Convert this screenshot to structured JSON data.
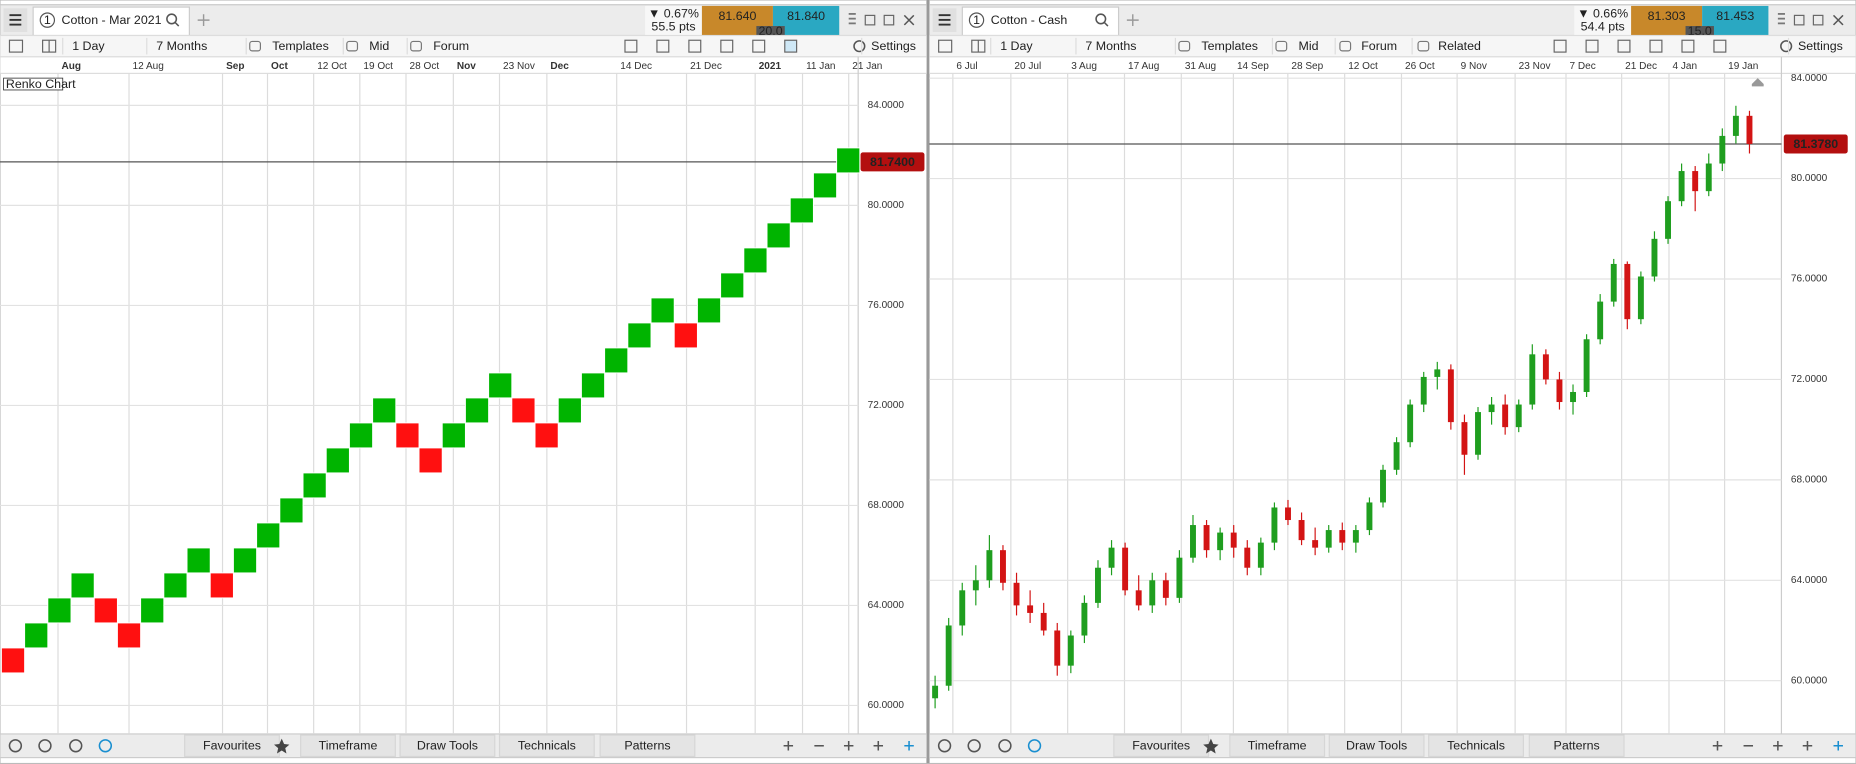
{
  "panels": [
    {
      "tab": "1",
      "title": "Cotton - Mar 2021",
      "change": "▼ 0.67%",
      "points": "55.5 pts",
      "sell": "81.640",
      "buy": "81.840",
      "spread": "20.0",
      "toolbar": [
        "1 Day",
        "7 Months",
        "Templates",
        "Mid",
        "Forum",
        "Settings"
      ],
      "bottom_tabs": [
        "Favourites",
        "Timeframe",
        "Draw Tools",
        "Technicals",
        "Patterns"
      ]
    },
    {
      "tab": "1",
      "title": "Cotton - Cash",
      "change": "▼ 0.66%",
      "points": "54.4 pts",
      "sell": "81.303",
      "buy": "81.453",
      "spread": "15.0",
      "toolbar": [
        "1 Day",
        "7 Months",
        "Templates",
        "Mid",
        "Forum",
        "Related",
        "Settings"
      ],
      "bottom_tabs": [
        "Favourites",
        "Timeframe",
        "Draw Tools",
        "Technicals",
        "Patterns"
      ]
    }
  ],
  "chart_data": [
    {
      "type": "renko",
      "label": "Renko Chart",
      "up_color": "#00b400",
      "down_color": "#ff1010",
      "x_labels": [
        "Aug",
        "12 Aug",
        "Sep",
        "Oct",
        "12 Oct",
        "19 Oct",
        "28 Oct",
        "Nov",
        "23 Nov",
        "Dec",
        "14 Dec",
        "21 Dec",
        "2021",
        "11 Jan",
        "21 Jan"
      ],
      "open": [
        62.3,
        62.3,
        63.3,
        64.3,
        64.3,
        63.3,
        63.3,
        64.3,
        65.3,
        65.3,
        65.3,
        66.3,
        67.3,
        68.3,
        69.3,
        70.3,
        71.3,
        71.3,
        70.3,
        70.3,
        71.3,
        72.3,
        72.3,
        71.3,
        71.3,
        72.3,
        73.3,
        74.3,
        75.3,
        75.3,
        75.3,
        76.3,
        77.3,
        78.3,
        79.3,
        80.3,
        81.3
      ],
      "close": [
        61.3,
        63.3,
        64.3,
        65.3,
        63.3,
        62.3,
        64.3,
        65.3,
        66.3,
        64.3,
        66.3,
        67.3,
        68.3,
        69.3,
        70.3,
        71.3,
        72.3,
        70.3,
        69.3,
        71.3,
        72.3,
        73.3,
        71.3,
        70.3,
        72.3,
        73.3,
        74.3,
        75.3,
        76.3,
        74.3,
        76.3,
        77.3,
        78.3,
        79.3,
        80.3,
        81.3,
        82.3
      ],
      "ylim": [
        58.86,
        85.28
      ],
      "yticks": [
        {
          "value": 60,
          "label": "60.0000"
        },
        {
          "value": 64,
          "label": "64.0000"
        },
        {
          "value": 68,
          "label": "68.0000"
        },
        {
          "value": 72,
          "label": "72.0000"
        },
        {
          "value": 76,
          "label": "76.0000"
        },
        {
          "value": 80,
          "label": "80.0000"
        },
        {
          "value": 84,
          "label": "84.0000"
        }
      ],
      "last": {
        "value": 81.74,
        "label": "81.7400"
      }
    },
    {
      "type": "candlestick",
      "up_color": "#1f9e1f",
      "down_color": "#d31414",
      "x_labels": [
        "6 Jul",
        "20 Jul",
        "3 Aug",
        "17 Aug",
        "31 Aug",
        "14 Sep",
        "28 Sep",
        "12 Oct",
        "26 Oct",
        "9 Nov",
        "23 Nov",
        "7 Dec",
        "21 Dec",
        "4 Jan",
        "19 Jan"
      ],
      "open": [
        59.3,
        59.8,
        62.2,
        63.6,
        64.0,
        65.2,
        63.9,
        63.0,
        62.7,
        62.0,
        60.6,
        61.8,
        63.1,
        64.5,
        65.3,
        63.6,
        63.0,
        64.0,
        63.3,
        64.9,
        66.2,
        65.2,
        65.9,
        65.3,
        64.5,
        65.5,
        66.9,
        66.4,
        65.6,
        65.3,
        66.0,
        65.5,
        66.0,
        67.1,
        68.4,
        69.5,
        71.0,
        72.1,
        72.4,
        70.3,
        69.0,
        70.7,
        71.0,
        70.1,
        71.0,
        73.0,
        72.0,
        71.1,
        71.5,
        73.6,
        75.1,
        76.6,
        74.4,
        76.1,
        77.6,
        79.1,
        80.3,
        79.5,
        80.6,
        81.7,
        82.5
      ],
      "high": [
        60.2,
        62.5,
        63.9,
        64.6,
        65.8,
        65.4,
        64.3,
        63.6,
        63.1,
        62.3,
        62.0,
        63.4,
        64.8,
        65.6,
        65.5,
        64.2,
        64.3,
        64.3,
        65.2,
        66.6,
        66.4,
        66.1,
        66.2,
        65.6,
        65.7,
        67.1,
        67.2,
        66.7,
        66.1,
        66.2,
        66.3,
        66.2,
        67.3,
        68.6,
        69.7,
        71.2,
        72.3,
        72.7,
        72.6,
        70.6,
        70.9,
        71.3,
        71.4,
        71.2,
        73.4,
        73.2,
        72.3,
        71.8,
        73.8,
        75.4,
        76.8,
        76.7,
        76.3,
        77.9,
        79.3,
        80.6,
        80.5,
        81.0,
        82.0,
        82.9,
        82.7
      ],
      "low": [
        58.9,
        59.6,
        61.8,
        63.0,
        63.7,
        63.6,
        62.6,
        62.3,
        61.8,
        60.2,
        60.3,
        61.5,
        62.9,
        64.2,
        63.4,
        62.8,
        62.7,
        63.0,
        63.1,
        64.7,
        64.9,
        64.8,
        64.9,
        64.2,
        64.2,
        65.2,
        66.2,
        65.4,
        65.0,
        65.1,
        65.2,
        65.1,
        65.8,
        66.9,
        68.2,
        69.3,
        70.7,
        71.6,
        70.0,
        68.2,
        68.8,
        70.2,
        69.8,
        69.9,
        70.8,
        71.8,
        70.8,
        70.6,
        71.3,
        73.4,
        74.9,
        74.0,
        74.2,
        75.9,
        77.4,
        78.9,
        78.7,
        79.3,
        80.3,
        81.4,
        81.0
      ],
      "close": [
        59.8,
        62.2,
        63.6,
        64.0,
        65.2,
        63.9,
        63.0,
        62.7,
        62.0,
        60.6,
        61.8,
        63.1,
        64.5,
        65.3,
        63.6,
        63.0,
        64.0,
        63.3,
        64.9,
        66.2,
        65.2,
        65.9,
        65.3,
        64.5,
        65.5,
        66.9,
        66.4,
        65.6,
        65.3,
        66.0,
        65.5,
        66.0,
        67.1,
        68.4,
        69.5,
        71.0,
        72.1,
        72.4,
        70.3,
        69.0,
        70.7,
        71.0,
        70.1,
        71.0,
        73.0,
        72.0,
        71.1,
        71.5,
        73.6,
        75.1,
        76.6,
        74.4,
        76.1,
        77.6,
        79.1,
        80.3,
        79.5,
        80.6,
        81.7,
        82.5,
        81.38
      ],
      "ylim": [
        57.88,
        84.19
      ],
      "yticks": [
        {
          "value": 60,
          "label": "60.0000"
        },
        {
          "value": 64,
          "label": "64.0000"
        },
        {
          "value": 68,
          "label": "68.0000"
        },
        {
          "value": 72,
          "label": "72.0000"
        },
        {
          "value": 76,
          "label": "76.0000"
        },
        {
          "value": 80,
          "label": "80.0000"
        },
        {
          "value": 84,
          "label": "84.0000"
        }
      ],
      "last": {
        "value": 81.378,
        "label": "81.3780"
      }
    }
  ]
}
